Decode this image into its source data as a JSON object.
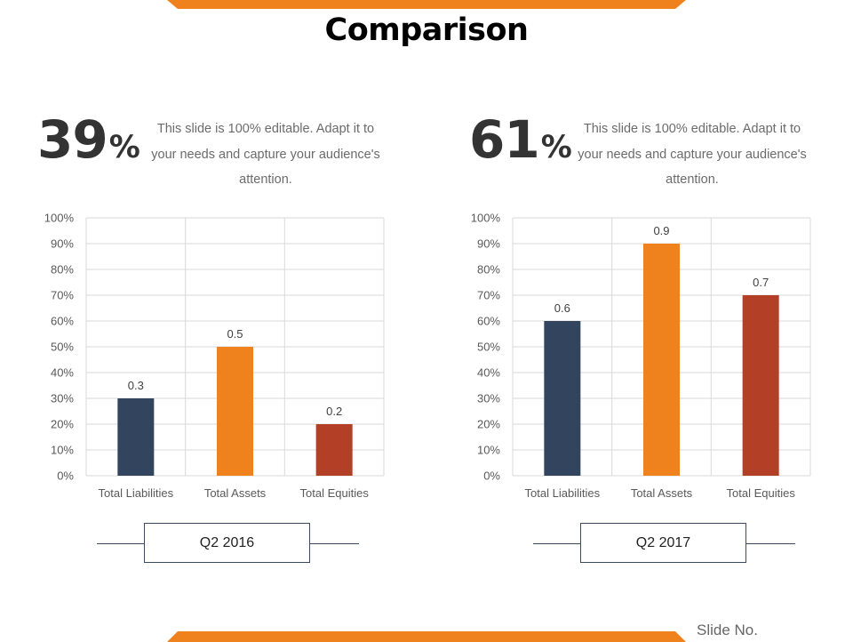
{
  "slide": {
    "title": "Comparison",
    "slide_no_label": "Slide No."
  },
  "panels": [
    {
      "percent_value": "39",
      "percent_sign": "%",
      "description": "This slide is 100% editable. Adapt it to your needs and capture your audience's attention.",
      "period_label": "Q2 2016"
    },
    {
      "percent_value": "61",
      "percent_sign": "%",
      "description": "This slide is 100% editable. Adapt it to your needs and capture your audience's attention.",
      "period_label": "Q2 2017"
    }
  ],
  "colors": {
    "accent": "#f0821e",
    "liabilities": "#33445e",
    "assets": "#f0821e",
    "equities": "#b33f26",
    "grid": "#d9d9d9",
    "text": "#595959"
  },
  "chart_data": [
    {
      "type": "bar",
      "title": "",
      "categories": [
        "Total Liabilities",
        "Total Assets",
        "Total Equities"
      ],
      "values": [
        0.3,
        0.5,
        0.2
      ],
      "data_labels": [
        "0.3",
        "0.5",
        "0.2"
      ],
      "yticks": [
        "0%",
        "10%",
        "20%",
        "30%",
        "40%",
        "50%",
        "60%",
        "70%",
        "80%",
        "90%",
        "100%"
      ],
      "ylim": [
        0,
        1
      ],
      "grid": true,
      "xlabel": "",
      "ylabel": ""
    },
    {
      "type": "bar",
      "title": "",
      "categories": [
        "Total Liabilities",
        "Total Assets",
        "Total Equities"
      ],
      "values": [
        0.6,
        0.9,
        0.7
      ],
      "data_labels": [
        "0.6",
        "0.9",
        "0.7"
      ],
      "yticks": [
        "0%",
        "10%",
        "20%",
        "30%",
        "40%",
        "50%",
        "60%",
        "70%",
        "80%",
        "90%",
        "100%"
      ],
      "ylim": [
        0,
        1
      ],
      "grid": true,
      "xlabel": "",
      "ylabel": ""
    }
  ]
}
